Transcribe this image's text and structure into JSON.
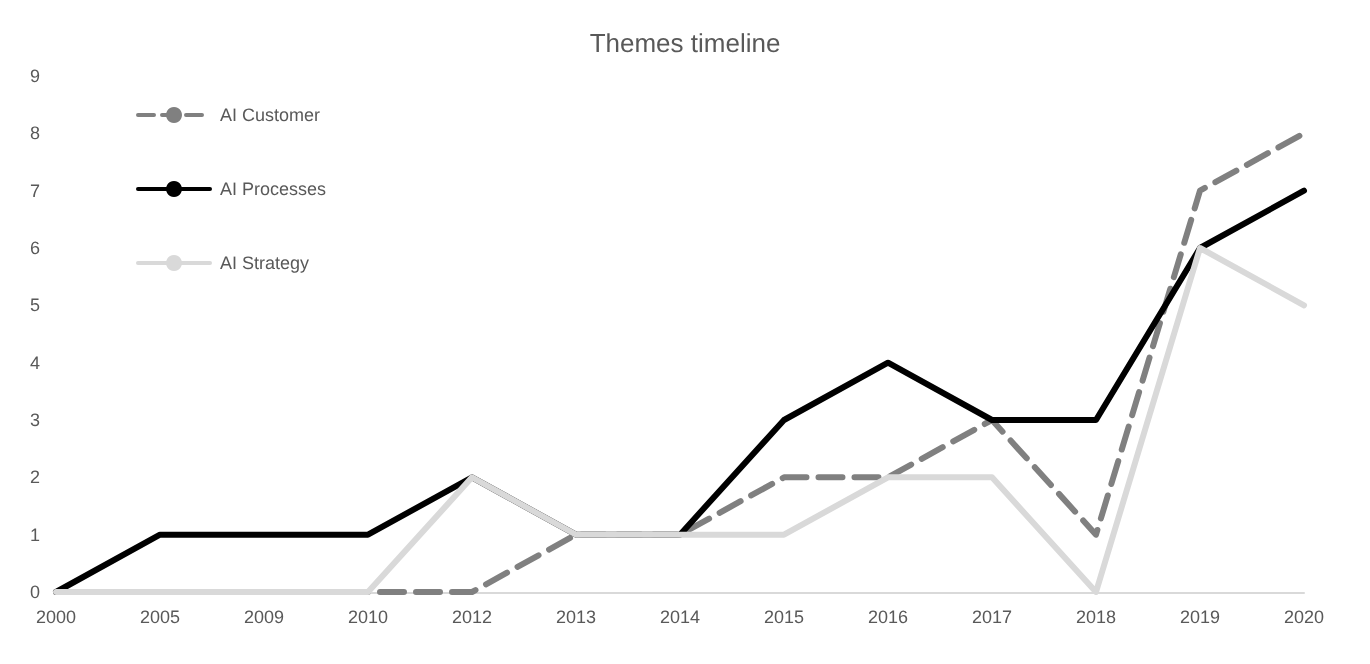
{
  "chart_data": {
    "type": "line",
    "title": "Themes timeline",
    "categories": [
      "2000",
      "2005",
      "2009",
      "2010",
      "2012",
      "2013",
      "2014",
      "2015",
      "2016",
      "2017",
      "2018",
      "2019",
      "2020"
    ],
    "series": [
      {
        "name": "AI Customer",
        "color": "#808080",
        "line_style": "dashed",
        "values": [
          0,
          0,
          0,
          0,
          0,
          1,
          1,
          2,
          2,
          3,
          1,
          7,
          8
        ]
      },
      {
        "name": "AI Processes",
        "color": "#000000",
        "line_style": "solid",
        "values": [
          0,
          1,
          1,
          1,
          2,
          1,
          1,
          3,
          4,
          3,
          3,
          6,
          7
        ]
      },
      {
        "name": "AI Strategy",
        "color": "#d9d9d9",
        "line_style": "solid",
        "values": [
          0,
          0,
          0,
          0,
          2,
          1,
          1,
          1,
          2,
          2,
          0,
          6,
          5
        ]
      }
    ],
    "ylim": [
      0,
      9
    ],
    "yticks": [
      0,
      1,
      2,
      3,
      4,
      5,
      6,
      7,
      8,
      9
    ],
    "grid": false,
    "legend": "top left",
    "marker": "none"
  }
}
